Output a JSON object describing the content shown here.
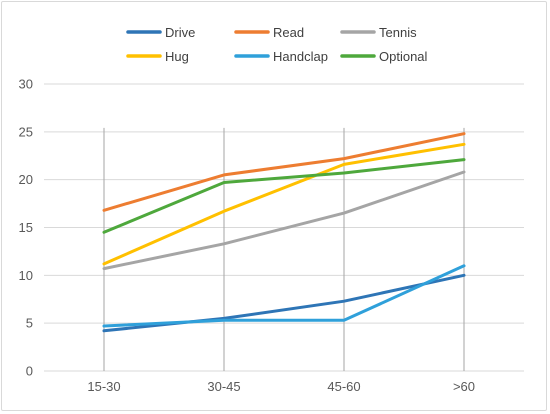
{
  "chart_data": {
    "type": "line",
    "categories": [
      "15-30",
      "30-45",
      "45-60",
      ">60"
    ],
    "ylim": [
      0,
      30
    ],
    "yticks": [
      0,
      5,
      10,
      15,
      20,
      25,
      30
    ],
    "grid": {
      "horizontal": true,
      "vertical": true
    },
    "legend_position": "top",
    "series": [
      {
        "name": "Drive",
        "color": "#2E75B6",
        "values": [
          4.2,
          5.5,
          7.3,
          10.0
        ]
      },
      {
        "name": "Read",
        "color": "#ED7D31",
        "values": [
          16.8,
          20.5,
          22.2,
          24.8
        ]
      },
      {
        "name": "Tennis",
        "color": "#A5A5A5",
        "values": [
          10.7,
          13.3,
          16.5,
          20.8
        ]
      },
      {
        "name": "Hug",
        "color": "#FFC000",
        "values": [
          11.2,
          16.7,
          21.6,
          23.7
        ]
      },
      {
        "name": "Handclap",
        "color": "#2FA0DA",
        "values": [
          4.7,
          5.3,
          5.3,
          11.0
        ]
      },
      {
        "name": "Optional",
        "color": "#4EA83C",
        "values": [
          14.5,
          19.7,
          20.7,
          22.1
        ]
      }
    ]
  }
}
